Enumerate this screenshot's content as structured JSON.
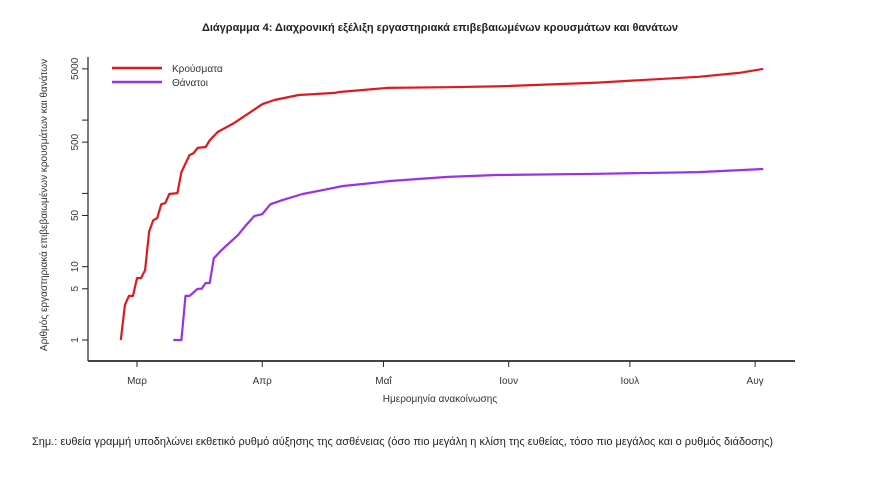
{
  "chart_data": {
    "type": "line",
    "title": "Διάγραμμα 4: Διαχρονική εξέλιξη εργαστηριακά επιβεβαιωμένων κρουσμάτων και θανάτων",
    "xlabel": "Ημερομηνία ανακοίνωσης",
    "ylabel": "Αριθμός εργαστηριακά επιβεβαιωμένων κρουσμάτων και θανάτων",
    "y_scale": "log",
    "ylim": [
      1,
      5000
    ],
    "x_ticks": [
      {
        "date": "2020-03-01",
        "label": "Μαρ"
      },
      {
        "date": "2020-04-01",
        "label": "Απρ"
      },
      {
        "date": "2020-05-01",
        "label": "Μαΐ"
      },
      {
        "date": "2020-06-01",
        "label": "Ιουν"
      },
      {
        "date": "2020-07-01",
        "label": "Ιουλ"
      },
      {
        "date": "2020-08-01",
        "label": "Αυγ"
      }
    ],
    "y_ticks": [
      {
        "value": 1,
        "label": "1"
      },
      {
        "value": 5,
        "label": "5"
      },
      {
        "value": 10,
        "label": "10"
      },
      {
        "value": 50,
        "label": "50"
      },
      {
        "value": 100,
        "label": ""
      },
      {
        "value": 500,
        "label": "500"
      },
      {
        "value": 1000,
        "label": ""
      },
      {
        "value": 5000,
        "label": "5000"
      }
    ],
    "grid": false,
    "legend": "top-left",
    "series": [
      {
        "name": "Κρούσματα",
        "color": "#e0191f",
        "points": [
          [
            "2020-02-26",
            1
          ],
          [
            "2020-02-27",
            3
          ],
          [
            "2020-02-28",
            4
          ],
          [
            "2020-02-29",
            4
          ],
          [
            "2020-03-01",
            7
          ],
          [
            "2020-03-02",
            7
          ],
          [
            "2020-03-03",
            9
          ],
          [
            "2020-03-04",
            30
          ],
          [
            "2020-03-05",
            43
          ],
          [
            "2020-03-06",
            46
          ],
          [
            "2020-03-07",
            71
          ],
          [
            "2020-03-08",
            74
          ],
          [
            "2020-03-09",
            98
          ],
          [
            "2020-03-11",
            101
          ],
          [
            "2020-03-12",
            195
          ],
          [
            "2020-03-14",
            333
          ],
          [
            "2020-03-15",
            355
          ],
          [
            "2020-03-16",
            417
          ],
          [
            "2020-03-18",
            430
          ],
          [
            "2020-03-19",
            530
          ],
          [
            "2020-03-21",
            690
          ],
          [
            "2020-03-25",
            910
          ],
          [
            "2020-03-28",
            1170
          ],
          [
            "2020-04-01",
            1650
          ],
          [
            "2020-04-04",
            1880
          ],
          [
            "2020-04-10",
            2200
          ],
          [
            "2020-04-19",
            2350
          ],
          [
            "2020-04-20",
            2420
          ],
          [
            "2020-05-02",
            2750
          ],
          [
            "2020-05-17",
            2810
          ],
          [
            "2020-05-29",
            2880
          ],
          [
            "2020-06-23",
            3250
          ],
          [
            "2020-07-18",
            3900
          ],
          [
            "2020-07-28",
            4400
          ],
          [
            "2020-08-03",
            5000
          ]
        ]
      },
      {
        "name": "Θάνατοι",
        "color": "#9b30e6",
        "points": [
          [
            "2020-03-10",
            1
          ],
          [
            "2020-03-12",
            1
          ],
          [
            "2020-03-13",
            4
          ],
          [
            "2020-03-14",
            4
          ],
          [
            "2020-03-16",
            5
          ],
          [
            "2020-03-17",
            5
          ],
          [
            "2020-03-18",
            6
          ],
          [
            "2020-03-19",
            6
          ],
          [
            "2020-03-20",
            13
          ],
          [
            "2020-03-22",
            17
          ],
          [
            "2020-03-26",
            27
          ],
          [
            "2020-03-28",
            37
          ],
          [
            "2020-03-30",
            49
          ],
          [
            "2020-04-01",
            52
          ],
          [
            "2020-04-03",
            71
          ],
          [
            "2020-04-06",
            81
          ],
          [
            "2020-04-11",
            98
          ],
          [
            "2020-04-16",
            111
          ],
          [
            "2020-04-21",
            126
          ],
          [
            "2020-04-28",
            138
          ],
          [
            "2020-05-03",
            148
          ],
          [
            "2020-05-17",
            168
          ],
          [
            "2020-05-29",
            178
          ],
          [
            "2020-06-23",
            185
          ],
          [
            "2020-07-18",
            195
          ],
          [
            "2020-08-03",
            215
          ]
        ]
      }
    ]
  },
  "note": "Σημ.: ευθεία γραμμή υποδηλώνει εκθετικό ρυθμό αύξησης της ασθένειας (όσο πιο μεγάλη η κλίση της ευθείας, τόσο πιο μεγάλος και ο ρυθμός διάδοσης)"
}
